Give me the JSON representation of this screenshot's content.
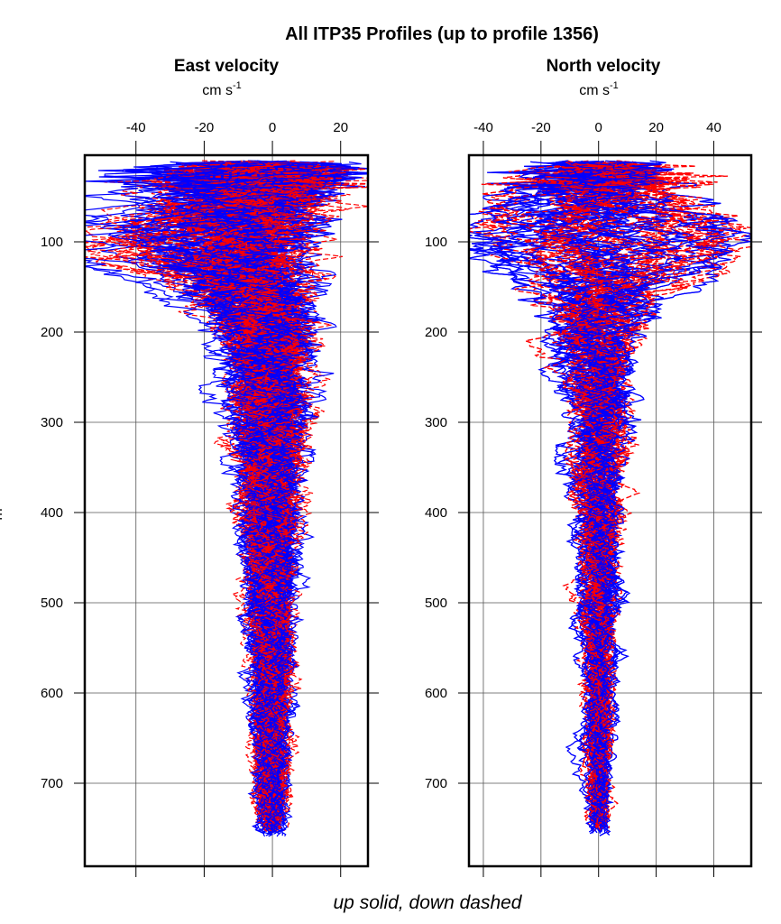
{
  "chart_data": [
    {
      "type": "line",
      "title": "All ITP35 Profiles (up to profile 1356)",
      "panel_title": "East velocity",
      "xlabel_unit": "cm s",
      "xlabel_exp": "-1",
      "ylabel": "m",
      "xlim": [
        -55,
        28
      ],
      "ylim": [
        792,
        4
      ],
      "y_reversed": true,
      "xticks": [
        -40,
        -20,
        0,
        20
      ],
      "yticks": [
        100,
        200,
        300,
        400,
        500,
        600,
        700
      ],
      "grid": true,
      "series": [
        {
          "style": "solid",
          "color": "#0000ff",
          "jet_depth": 100,
          "jet_range": [
            -50,
            5
          ],
          "depth_range": [
            10,
            760
          ]
        },
        {
          "style": "dashed",
          "color": "#ff0000",
          "jet_depth": 100,
          "jet_range": [
            -45,
            5
          ],
          "depth_range": [
            10,
            755
          ]
        }
      ]
    },
    {
      "type": "line",
      "panel_title": "North velocity",
      "xlabel_unit": "cm s",
      "xlabel_exp": "-1",
      "xlim": [
        -45,
        53
      ],
      "ylim": [
        792,
        4
      ],
      "y_reversed": true,
      "xticks": [
        -40,
        -20,
        0,
        20,
        40
      ],
      "yticks": [
        100,
        200,
        300,
        400,
        500,
        600,
        700
      ],
      "grid": true,
      "series": [
        {
          "style": "solid",
          "color": "#0000ff",
          "jet_depth": 100,
          "jet_range": [
            -40,
            52
          ],
          "depth_range": [
            10,
            760
          ]
        },
        {
          "style": "dashed",
          "color": "#ff0000",
          "jet_depth": 100,
          "jet_range": [
            -30,
            45
          ],
          "depth_range": [
            10,
            755
          ]
        }
      ]
    }
  ],
  "footer": "up solid, down dashed"
}
